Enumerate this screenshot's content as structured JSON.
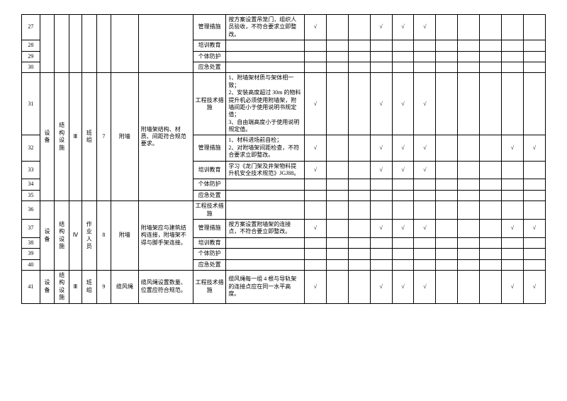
{
  "colors": {
    "border": "#000000",
    "background": "#ffffff",
    "text": "#000000"
  },
  "font": {
    "family": "SimSun",
    "size_pt": 8
  },
  "check": "√",
  "groups": [
    {
      "c1": "设备",
      "c2": "结构设施",
      "c3": "Ⅲ",
      "c4": "班组",
      "c5": "7",
      "c6": "附墙",
      "c7": "附墙架结构、材质、间距符合规范要求。",
      "rows": [
        {
          "num": "27",
          "c8": "管理措施",
          "c9": "按方案设置吊笼门，组织人员验收，不符合要求立即整改。",
          "checks": [
            1,
            0,
            0,
            1,
            1,
            1,
            0,
            0,
            0,
            0,
            0
          ]
        },
        {
          "num": "28",
          "c8": "培训教育",
          "c9": "",
          "checks": [
            0,
            0,
            0,
            0,
            0,
            0,
            0,
            0,
            0,
            0,
            0
          ]
        },
        {
          "num": "29",
          "c8": "个体防护",
          "c9": "",
          "checks": [
            0,
            0,
            0,
            0,
            0,
            0,
            0,
            0,
            0,
            0,
            0
          ]
        },
        {
          "num": "30",
          "c8": "应急处置",
          "c9": "",
          "checks": [
            0,
            0,
            0,
            0,
            0,
            0,
            0,
            0,
            0,
            0,
            0
          ]
        },
        {
          "num": "31",
          "c8": "工程技术措施",
          "c9": "1、附墙架材质与架体相一致；\n2、安装高度超过 30m 的物料提升机必须使用附墙架，附墙间距小于使用说明书规定值；\n3、自由端高度小于使用说明规定值。",
          "checks": [
            1,
            0,
            0,
            1,
            1,
            1,
            0,
            0,
            0,
            0,
            0
          ]
        },
        {
          "num": "32",
          "c8": "管理措施",
          "c9": "1、材料进场前自检；\n2、对附墙架间距检查，不符合要求立即整改。",
          "checks": [
            1,
            0,
            0,
            1,
            1,
            1,
            0,
            0,
            0,
            1,
            1
          ]
        },
        {
          "num": "33",
          "c8": "培训教育",
          "c9": "学习《龙门架及井架物料提升机安全技术规范》JGJ88。",
          "checks": [
            1,
            0,
            0,
            1,
            1,
            1,
            0,
            0,
            0,
            0,
            0
          ]
        },
        {
          "num": "34",
          "c8": "个体防护",
          "c9": "",
          "checks": [
            0,
            0,
            0,
            0,
            0,
            0,
            0,
            0,
            0,
            0,
            0
          ]
        },
        {
          "num": "35",
          "c8": "应急处置",
          "c9": "",
          "checks": [
            0,
            0,
            0,
            0,
            0,
            0,
            0,
            0,
            0,
            0,
            0
          ]
        }
      ]
    },
    {
      "c1": "设备",
      "c2": "结构设施",
      "c3": "Ⅳ",
      "c4": "作业人员",
      "c5": "8",
      "c6": "附墙",
      "c7": "附墙架应与建筑结构连接，附墙架不得与脚手架连接。",
      "rows": [
        {
          "num": "36",
          "c8": "工程技术措施",
          "c9": "",
          "checks": [
            0,
            0,
            0,
            0,
            0,
            0,
            0,
            0,
            0,
            0,
            0
          ]
        },
        {
          "num": "37",
          "c8": "管理措施",
          "c9": "按方案设置附墙架的连接点，不符合要立即整改。",
          "checks": [
            1,
            0,
            0,
            1,
            1,
            1,
            0,
            0,
            0,
            1,
            1
          ]
        },
        {
          "num": "38",
          "c8": "培训教育",
          "c9": "",
          "checks": [
            0,
            0,
            0,
            0,
            0,
            0,
            0,
            0,
            0,
            0,
            0
          ]
        },
        {
          "num": "39",
          "c8": "个体防护",
          "c9": "",
          "checks": [
            0,
            0,
            0,
            0,
            0,
            0,
            0,
            0,
            0,
            0,
            0
          ]
        },
        {
          "num": "40",
          "c8": "应急处置",
          "c9": "",
          "checks": [
            0,
            0,
            0,
            0,
            0,
            0,
            0,
            0,
            0,
            0,
            0
          ]
        }
      ]
    },
    {
      "c1": "设备",
      "c2": "结构设施",
      "c3": "Ⅲ",
      "c4": "班组",
      "c5": "9",
      "c6": "缆风绳",
      "c7": "缆风绳设置数量、位置应符合规范。",
      "rows": [
        {
          "num": "41",
          "c8": "工程技术措施",
          "c9": "缆风绳每一组 4 根与导轨架的连接点应在同一水平高度。",
          "checks": [
            1,
            0,
            0,
            1,
            1,
            1,
            0,
            0,
            0,
            1,
            1
          ]
        }
      ]
    }
  ]
}
